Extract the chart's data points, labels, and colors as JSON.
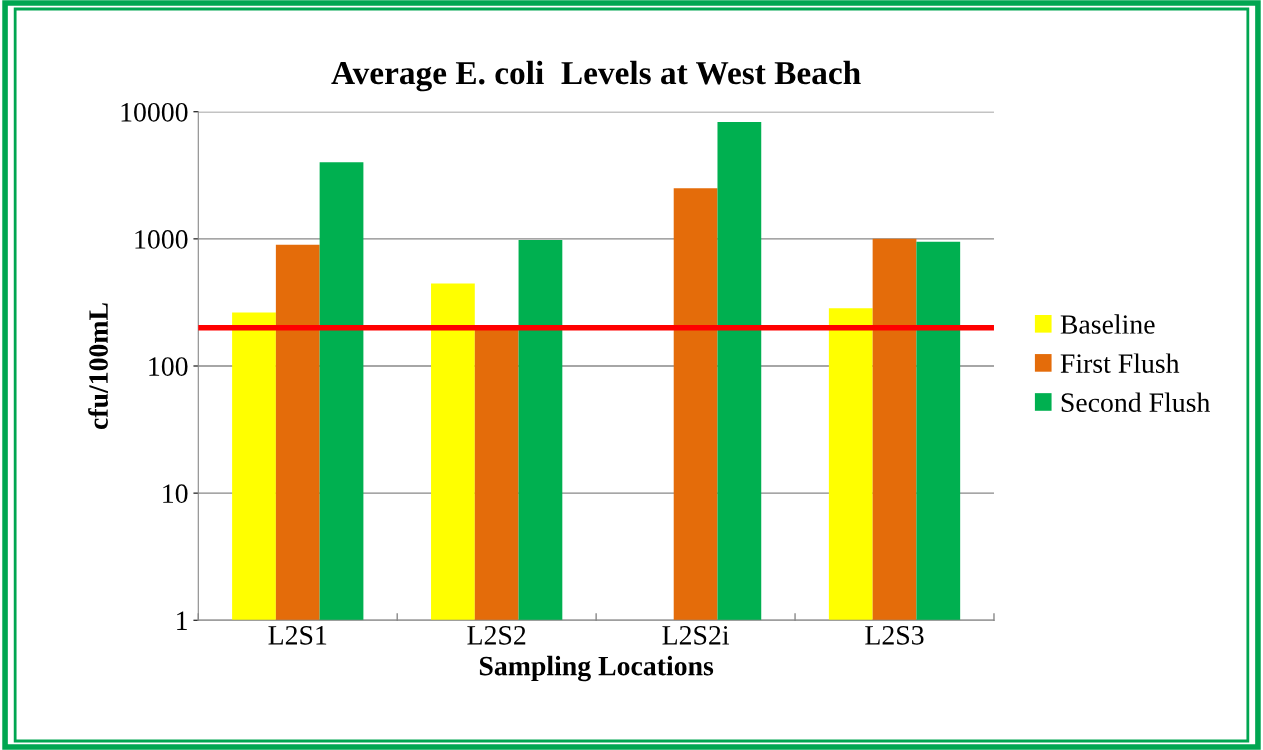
{
  "chart_data": {
    "type": "bar",
    "title": "Average E. coli  Levels at West Beach",
    "xlabel": "Sampling Locations",
    "ylabel": "cfu/100mL",
    "categories": [
      "L2S1",
      "L2S2",
      "L2S2i",
      "L2S3"
    ],
    "series": [
      {
        "name": "Baseline",
        "color": "#ffff00",
        "values": [
          263,
          445,
          null,
          283
        ]
      },
      {
        "name": "First Flush",
        "color": "#e46c0a",
        "values": [
          900,
          200,
          2500,
          1000
        ]
      },
      {
        "name": "Second Flush",
        "color": "#00b050",
        "values": [
          4000,
          980,
          8300,
          950
        ]
      }
    ],
    "log": true,
    "ylim": [
      1,
      10000
    ],
    "yticks": [
      1,
      10,
      100,
      1000,
      10000
    ],
    "grid": "y",
    "legend": "right",
    "ref_lines": [
      {
        "axis": "y",
        "value": 200,
        "color": "#ff0000"
      }
    ]
  }
}
